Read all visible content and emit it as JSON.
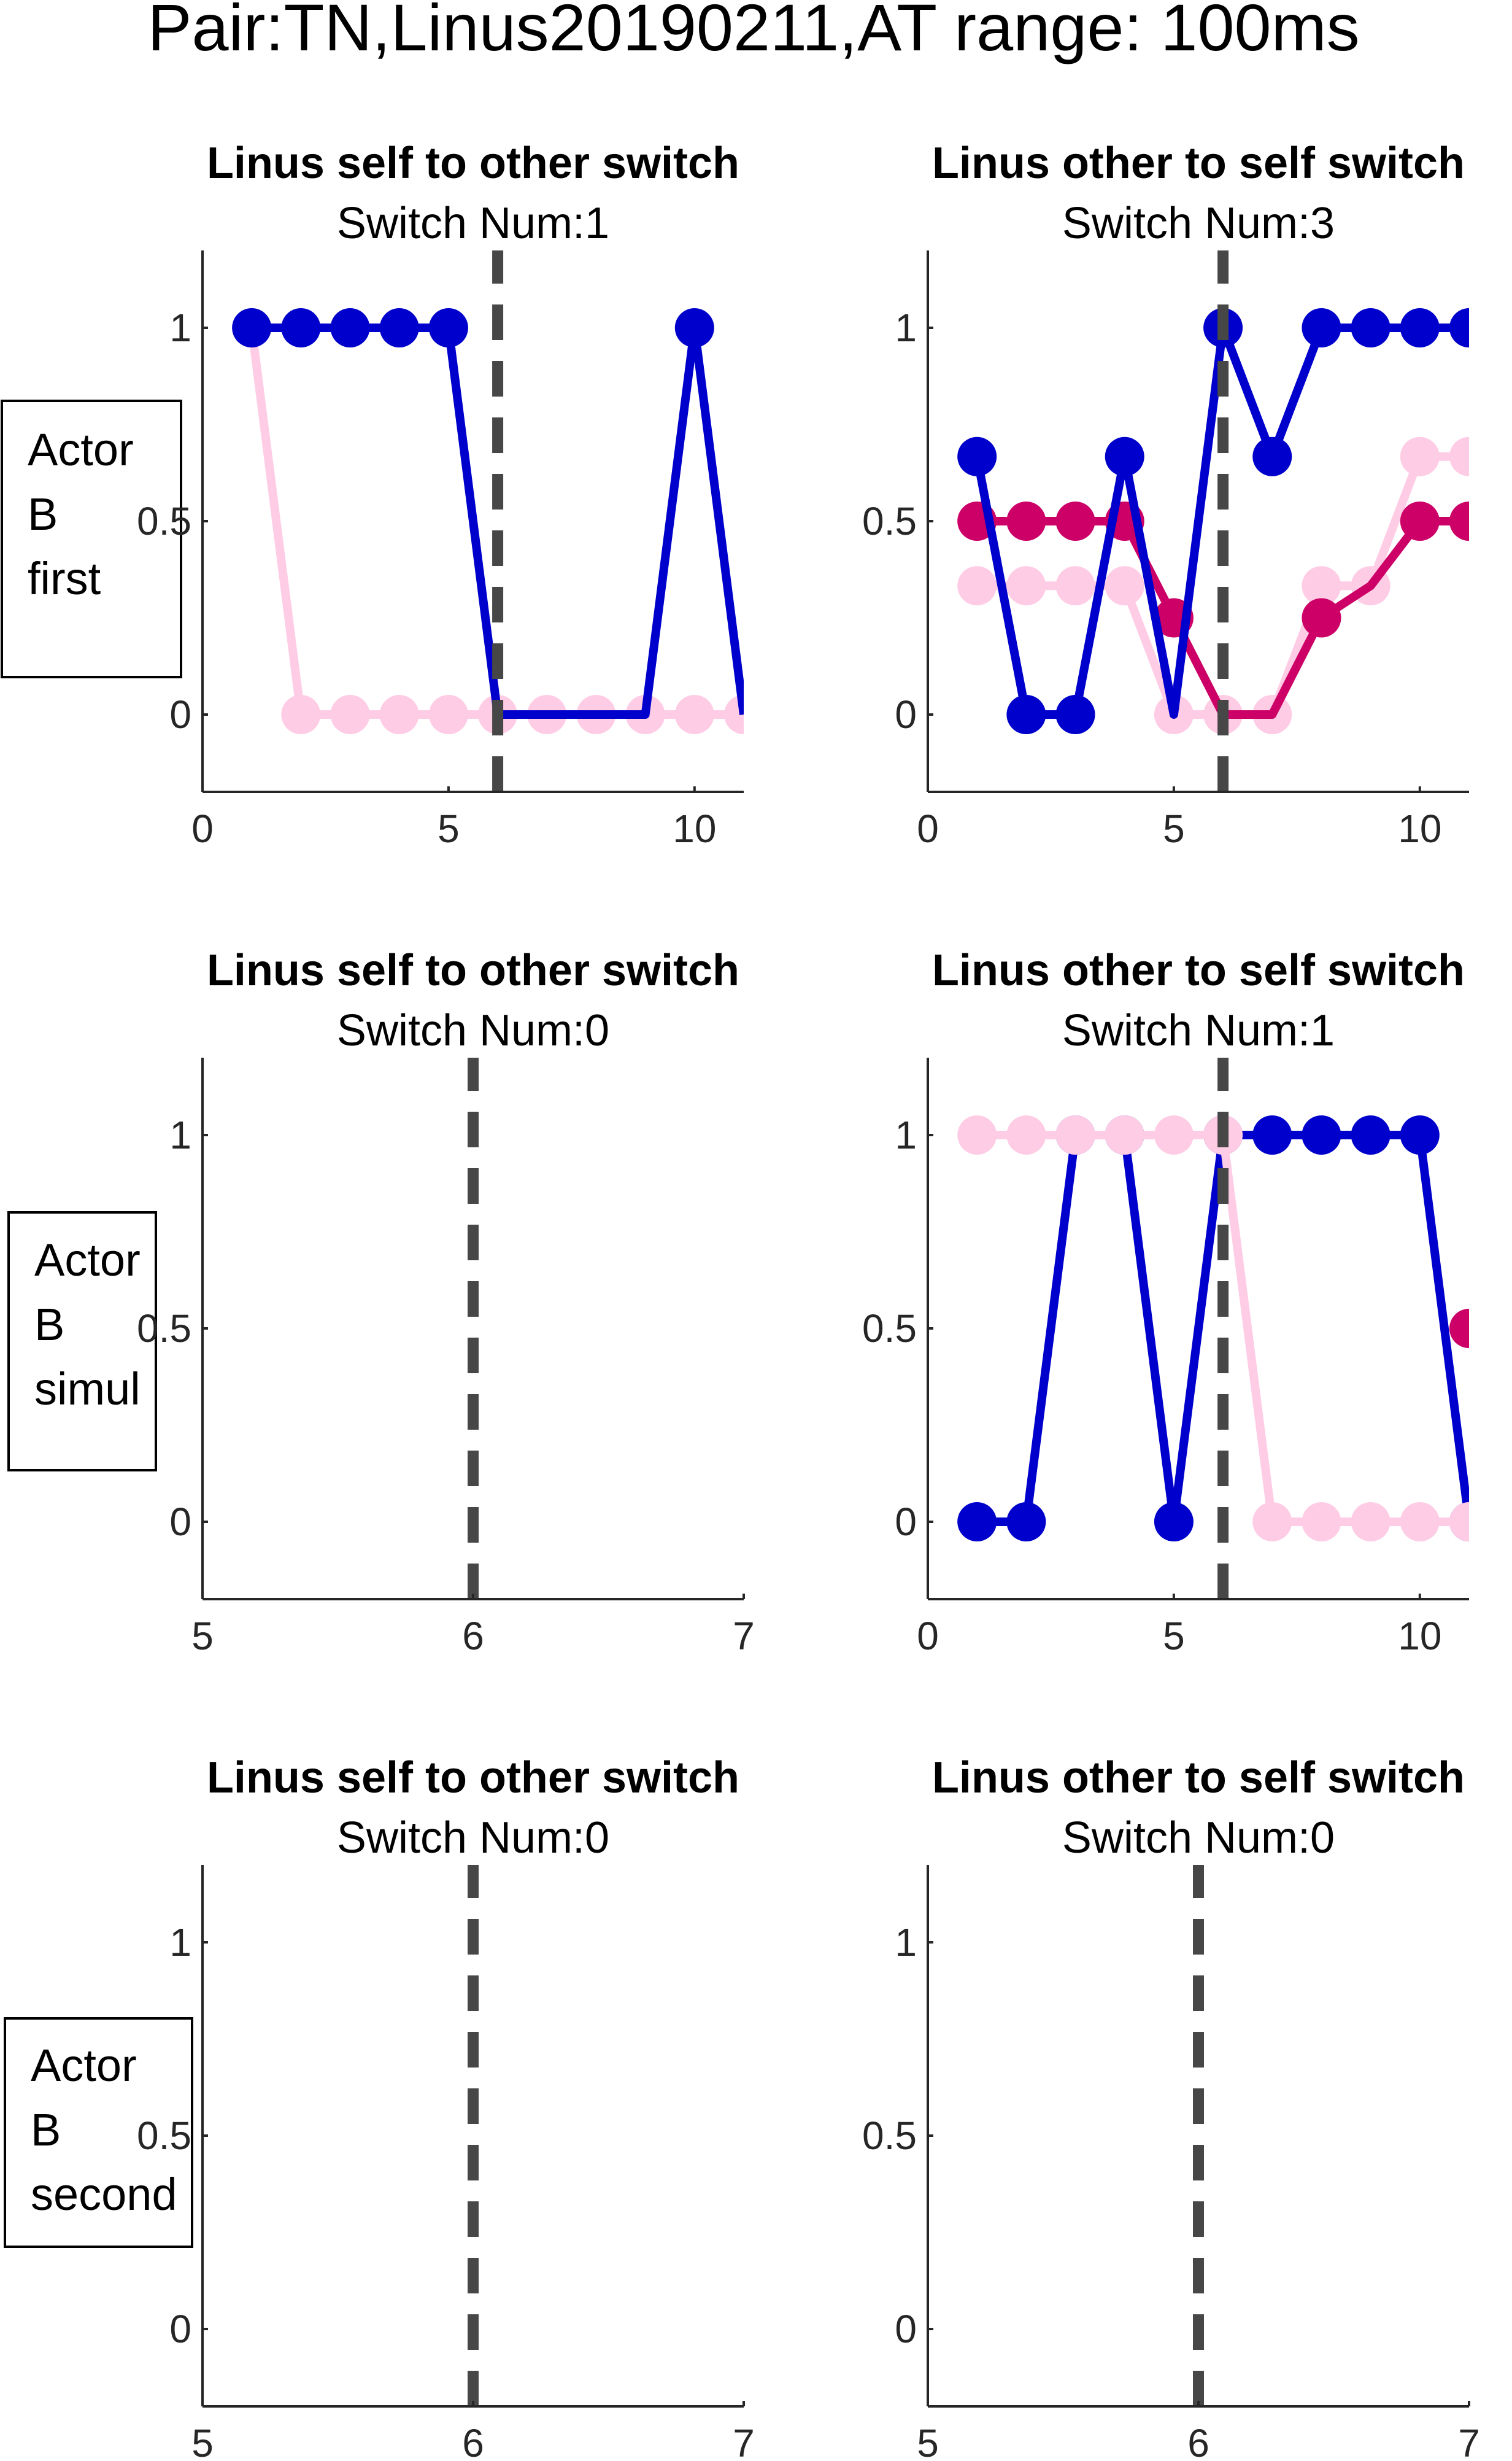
{
  "figure_title": "Pair:TN,Linus20190211,AT range: 100ms",
  "colors": {
    "dark_blue": "#0000CC",
    "magenta": "#CC0066",
    "light_pink": "#FFCCE5",
    "marker_line": "#474747",
    "axis": "#262626"
  },
  "row_labels": [
    [
      "Actor",
      "B",
      "first"
    ],
    [
      "Actor",
      "B",
      "simul"
    ],
    [
      "Actor",
      "B",
      "second"
    ]
  ],
  "chart_data": [
    {
      "type": "line",
      "title": "Linus self to other switch",
      "subtitle": "Switch Num:1",
      "xlim": [
        0,
        11
      ],
      "ylim": [
        -0.2,
        1.2
      ],
      "xticks": [
        0,
        5,
        10
      ],
      "yticks": [
        0,
        0.5,
        1
      ],
      "xtick_labels": [
        "0",
        "5",
        "10"
      ],
      "ytick_labels": [
        "0",
        "0.5",
        "1"
      ],
      "vline_x": 6,
      "series": [
        {
          "color": "#FFCCE5",
          "x": [
            1,
            2,
            3,
            4,
            5,
            6,
            7,
            8,
            9,
            10,
            11
          ],
          "y": [
            1,
            0,
            0,
            0,
            0,
            0,
            0,
            0,
            0,
            0,
            0
          ]
        },
        {
          "color": "#0000CC",
          "x": [
            1,
            2,
            3,
            4,
            5,
            6,
            9,
            10,
            11
          ],
          "y": [
            1,
            1,
            1,
            1,
            1,
            0,
            0,
            1,
            0
          ],
          "marker_x": [
            1,
            2,
            3,
            4,
            5,
            10
          ]
        }
      ]
    },
    {
      "type": "line",
      "title": "Linus other to self switch",
      "subtitle": "Switch Num:3",
      "xlim": [
        0,
        11
      ],
      "ylim": [
        -0.2,
        1.2
      ],
      "xticks": [
        0,
        5,
        10
      ],
      "yticks": [
        0,
        0.5,
        1
      ],
      "xtick_labels": [
        "0",
        "5",
        "10"
      ],
      "ytick_labels": [
        "0",
        "0.5",
        "1"
      ],
      "vline_x": 6,
      "series": [
        {
          "color": "#FFCCE5",
          "x": [
            1,
            2,
            3,
            4,
            5,
            6,
            7,
            8,
            9,
            10,
            11
          ],
          "y": [
            0.333,
            0.333,
            0.333,
            0.333,
            0,
            0,
            0,
            0.333,
            0.333,
            0.667,
            0.667
          ]
        },
        {
          "color": "#CC0066",
          "x": [
            1,
            2,
            3,
            4,
            5,
            6,
            7,
            8,
            9,
            10,
            11
          ],
          "y": [
            0.5,
            0.5,
            0.5,
            0.5,
            0.25,
            0,
            0,
            0.25,
            0.333,
            0.5,
            0.5
          ],
          "marker_x": [
            1,
            2,
            3,
            4,
            5,
            8,
            10,
            11
          ]
        },
        {
          "color": "#0000CC",
          "x": [
            1,
            2,
            3,
            4,
            5,
            6,
            7,
            8,
            9,
            10,
            11
          ],
          "y": [
            0.667,
            0,
            0,
            0.667,
            0,
            1,
            0.667,
            1,
            1,
            1,
            1
          ],
          "marker_x": [
            1,
            2,
            3,
            4,
            6,
            7,
            8,
            9,
            10,
            11
          ]
        }
      ]
    },
    {
      "type": "line",
      "title": "Linus self to other switch",
      "subtitle": "Switch Num:0",
      "xlim": [
        5,
        7
      ],
      "ylim": [
        -0.2,
        1.2
      ],
      "xticks": [
        5,
        6,
        7
      ],
      "yticks": [
        0,
        0.5,
        1
      ],
      "xtick_labels": [
        "5",
        "6",
        "7"
      ],
      "ytick_labels": [
        "0",
        "0.5",
        "1"
      ],
      "vline_x": 6,
      "series": []
    },
    {
      "type": "line",
      "title": "Linus other to self switch",
      "subtitle": "Switch Num:1",
      "xlim": [
        0,
        11
      ],
      "ylim": [
        -0.2,
        1.2
      ],
      "xticks": [
        0,
        5,
        10
      ],
      "yticks": [
        0,
        0.5,
        1
      ],
      "xtick_labels": [
        "0",
        "5",
        "10"
      ],
      "ytick_labels": [
        "0",
        "0.5",
        "1"
      ],
      "vline_x": 6,
      "series": [
        {
          "color": "#0000CC",
          "x": [
            1,
            2,
            3,
            4,
            5,
            6,
            7,
            8,
            9,
            10,
            11
          ],
          "y": [
            0,
            0,
            1,
            1,
            0,
            1,
            1,
            1,
            1,
            1,
            0
          ]
        },
        {
          "color": "#FFCCE5",
          "x": [
            1,
            2,
            3,
            4,
            5,
            6,
            7,
            8,
            9,
            10,
            11
          ],
          "y": [
            1,
            1,
            1,
            1,
            1,
            1,
            0,
            0,
            0,
            0,
            0
          ]
        },
        {
          "color": "#CC0066",
          "x": [
            11
          ],
          "y": [
            0.5
          ]
        }
      ]
    },
    {
      "type": "line",
      "title": "Linus self to other switch",
      "subtitle": "Switch Num:0",
      "xlim": [
        5,
        7
      ],
      "ylim": [
        -0.2,
        1.2
      ],
      "xticks": [
        5,
        6,
        7
      ],
      "yticks": [
        0,
        0.5,
        1
      ],
      "xtick_labels": [
        "5",
        "6",
        "7"
      ],
      "ytick_labels": [
        "0",
        "0.5",
        "1"
      ],
      "vline_x": 6,
      "series": []
    },
    {
      "type": "line",
      "title": "Linus other to self switch",
      "subtitle": "Switch Num:0",
      "xlim": [
        5,
        7
      ],
      "ylim": [
        -0.2,
        1.2
      ],
      "xticks": [
        5,
        6,
        7
      ],
      "yticks": [
        0,
        0.5,
        1
      ],
      "xtick_labels": [
        "5",
        "6",
        "7"
      ],
      "ytick_labels": [
        "0",
        "0.5",
        "1"
      ],
      "vline_x": 6,
      "series": []
    }
  ]
}
